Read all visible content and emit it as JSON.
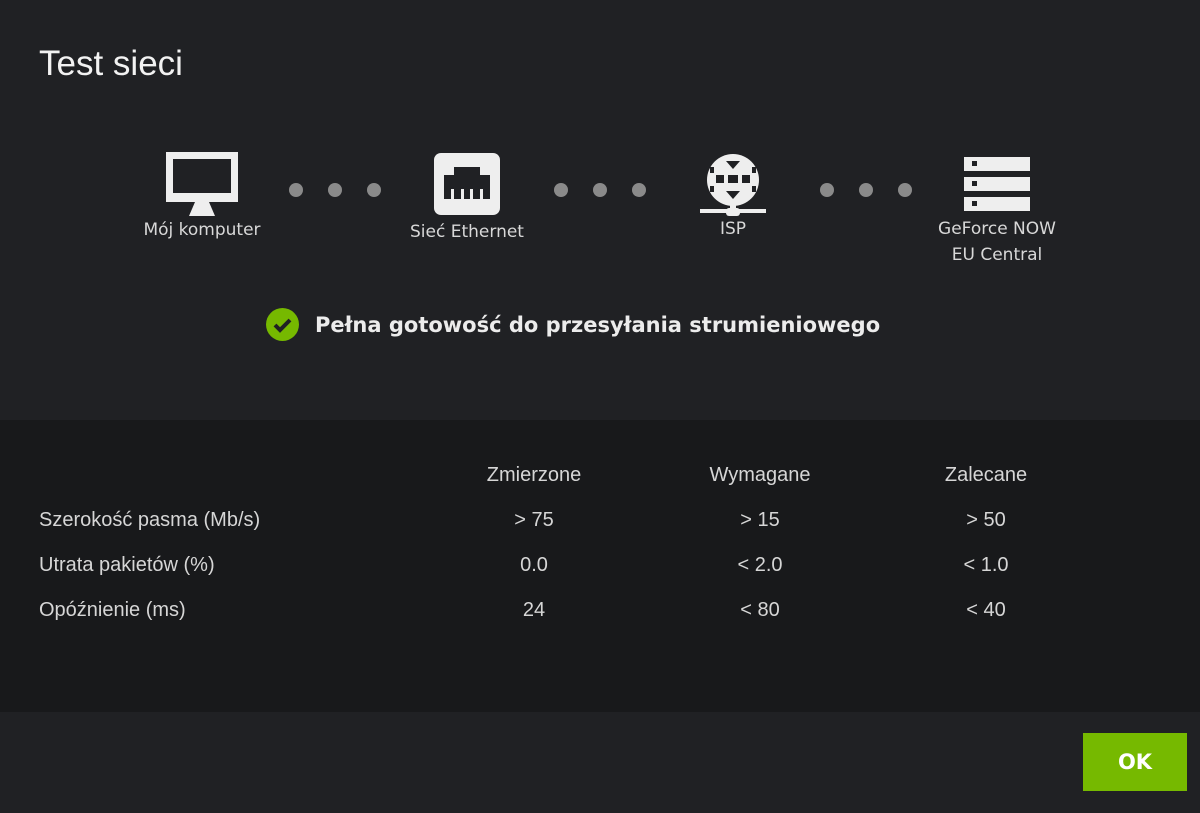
{
  "title": "Test sieci",
  "nodes": [
    {
      "icon": "monitor-icon",
      "label": "Mój komputer"
    },
    {
      "icon": "ethernet-icon",
      "label": "Sieć Ethernet"
    },
    {
      "icon": "globe-network-icon",
      "label": "ISP"
    },
    {
      "icon": "server-icon",
      "label": "GeForce NOW",
      "label2": "EU Central"
    }
  ],
  "status": {
    "icon": "check-circle-icon",
    "text": "Pełna gotowość do przesyłania strumieniowego",
    "color": "#76b900"
  },
  "table": {
    "headers": [
      "Zmierzone",
      "Wymagane",
      "Zalecane"
    ],
    "rows": [
      {
        "label": "Szerokość pasma (Mb/s)",
        "values": [
          "> 75",
          "> 15",
          "> 50"
        ]
      },
      {
        "label": "Utrata pakietów (%)",
        "values": [
          "0.0",
          "< 2.0",
          "< 1.0"
        ]
      },
      {
        "label": "Opóźnienie (ms)",
        "values": [
          "24",
          "< 80",
          "< 40"
        ]
      }
    ]
  },
  "ok_label": "OK",
  "accent": "#76b900"
}
